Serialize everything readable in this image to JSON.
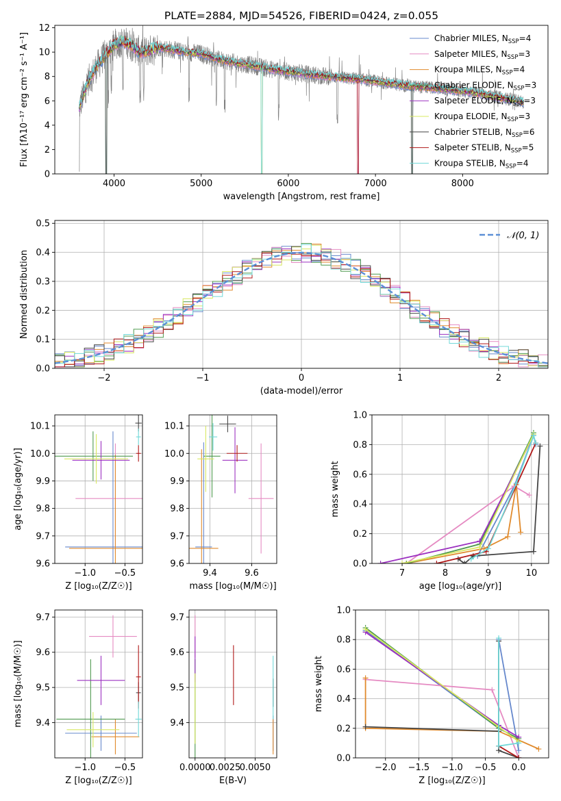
{
  "chart_data": [
    {
      "id": "spectrum",
      "type": "line",
      "title": "PLATE=2884, MJD=54526, FIBERID=0424, z=0.055",
      "xlabel": "wavelength [Angstrom, rest frame]",
      "ylabel": "Flux [fλ10⁻¹⁷ erg cm⁻² s⁻¹ A⁻¹]",
      "xlim": [
        3320,
        8980
      ],
      "ylim": [
        0,
        12.2
      ],
      "xticks": [
        4000,
        5000,
        6000,
        7000,
        8000
      ],
      "yticks": [
        0,
        2,
        4,
        6,
        8,
        10,
        12
      ],
      "grid": false,
      "legend_position": "right",
      "observed_color": "#808080",
      "continuum": {
        "x": [
          3600,
          3700,
          3800,
          3900,
          4000,
          4100,
          4200,
          4300,
          4400,
          4500,
          4600,
          4800,
          5000,
          5200,
          5400,
          5600,
          5800,
          6000,
          6200,
          6400,
          6600,
          6800,
          7000,
          7200,
          7400,
          7600,
          7800,
          8000,
          8200,
          8400,
          8600,
          8700
        ],
        "y": [
          5.4,
          7.6,
          8.8,
          9.8,
          10.6,
          10.9,
          10.6,
          10.0,
          10.1,
          10.4,
          10.3,
          10.0,
          9.9,
          9.4,
          9.1,
          8.9,
          8.6,
          8.4,
          8.2,
          8.05,
          7.9,
          7.8,
          7.6,
          7.4,
          7.2,
          7.1,
          6.95,
          6.8,
          6.6,
          6.3,
          6.05,
          5.9
        ]
      },
      "legend": [
        {
          "label": "Chabrier MILES, N",
          "sub": "SSP",
          "suffix": "=4",
          "color": "#6688cc"
        },
        {
          "label": "Salpeter MILES, N",
          "sub": "SSP",
          "suffix": "=3",
          "color": "#e58ac2"
        },
        {
          "label": "Kroupa MILES, N",
          "sub": "SSP",
          "suffix": "=4",
          "color": "#e08a2c"
        },
        {
          "label": "Chabrier ELODIE, N",
          "sub": "SSP",
          "suffix": "=3",
          "color": "#4f9a4f"
        },
        {
          "label": "Salpeter ELODIE, N",
          "sub": "SSP",
          "suffix": "=3",
          "color": "#9b30c0"
        },
        {
          "label": "Kroupa ELODIE, N",
          "sub": "SSP",
          "suffix": "=3",
          "color": "#d8e860"
        },
        {
          "label": "Chabrier STELIB, N",
          "sub": "SSP",
          "suffix": "=6",
          "color": "#444444"
        },
        {
          "label": "Salpeter STELIB, N",
          "sub": "SSP",
          "suffix": "=5",
          "color": "#b01818"
        },
        {
          "label": "Kroupa STELIB, N",
          "sub": "SSP",
          "suffix": "=4",
          "color": "#70d8d8"
        }
      ]
    },
    {
      "id": "residuals",
      "type": "histogram",
      "xlabel": "(data-model)/error",
      "ylabel": "Normed distribution",
      "xlim": [
        -2.5,
        2.5
      ],
      "ylim": [
        0,
        0.51
      ],
      "xticks": [
        -2,
        -1,
        0,
        1,
        2
      ],
      "yticks": [
        0.0,
        0.1,
        0.2,
        0.3,
        0.4,
        0.5
      ],
      "grid": true,
      "legend_position": "top-right",
      "gaussian_label": "𝒩(0, 1)",
      "gaussian_color": "#5b8fd6",
      "bin_width": 0.1
    },
    {
      "id": "age-vs-Z",
      "type": "errorbar",
      "xlabel": "Z [log₁₀(Z/Z☉)]",
      "ylabel": "age  [log₁₀(age/yr)]",
      "xlim": [
        -1.38,
        -0.28
      ],
      "ylim": [
        9.6,
        10.14
      ],
      "xticks": [
        -1.0,
        -0.5
      ],
      "yticks": [
        9.6,
        9.7,
        9.8,
        9.9,
        10.0,
        10.1
      ],
      "grid": true,
      "points": [
        {
          "x": -0.65,
          "y": 9.66,
          "xerr": 0.6,
          "yerr": 0.42,
          "color": "#6688cc"
        },
        {
          "x": -0.62,
          "y": 9.836,
          "xerr": 0.5,
          "yerr": 0.2,
          "color": "#e58ac2"
        },
        {
          "x": -0.62,
          "y": 9.655,
          "xerr": 0.58,
          "yerr": 0.34,
          "color": "#e08a2c"
        },
        {
          "x": -0.9,
          "y": 9.99,
          "xerr": 0.5,
          "yerr": 0.09,
          "color": "#4f9a4f"
        },
        {
          "x": -0.8,
          "y": 9.975,
          "xerr": 0.36,
          "yerr": 0.07,
          "color": "#9b30c0"
        },
        {
          "x": -0.86,
          "y": 9.98,
          "xerr": 0.4,
          "yerr": 0.09,
          "color": "#d8e860"
        },
        {
          "x": -0.33,
          "y": 10.11,
          "xerr": 0.04,
          "yerr": 0.03,
          "color": "#444444"
        },
        {
          "x": -0.33,
          "y": 10.0,
          "xerr": 0.03,
          "yerr": 0.03,
          "color": "#b01818"
        },
        {
          "x": -0.33,
          "y": 10.06,
          "xerr": 0.03,
          "yerr": 0.03,
          "color": "#70d8d8"
        }
      ]
    },
    {
      "id": "age-vs-mass",
      "type": "errorbar",
      "xlabel": "mass [log₁₀(M/M☉)]",
      "ylabel": "",
      "xlim": [
        9.3,
        9.72
      ],
      "ylim": [
        9.6,
        10.14
      ],
      "xticks": [
        9.4,
        9.6
      ],
      "yticks": [
        9.6,
        9.7,
        9.8,
        9.9,
        10.0,
        10.1
      ],
      "grid": true,
      "points": [
        {
          "x": 9.37,
          "y": 9.66,
          "xerr": 0.04,
          "yerr": 0.38,
          "color": "#6688cc"
        },
        {
          "x": 9.645,
          "y": 9.836,
          "xerr": 0.06,
          "yerr": 0.2,
          "color": "#e58ac2"
        },
        {
          "x": 9.36,
          "y": 9.655,
          "xerr": 0.08,
          "yerr": 0.36,
          "color": "#e08a2c"
        },
        {
          "x": 9.41,
          "y": 9.99,
          "xerr": 0.04,
          "yerr": 0.15,
          "color": "#4f9a4f"
        },
        {
          "x": 9.52,
          "y": 9.975,
          "xerr": 0.06,
          "yerr": 0.12,
          "color": "#9b30c0"
        },
        {
          "x": 9.38,
          "y": 9.98,
          "xerr": 0.04,
          "yerr": 0.12,
          "color": "#d8e860"
        },
        {
          "x": 9.485,
          "y": 10.107,
          "xerr": 0.04,
          "yerr": 0.03,
          "color": "#444444"
        },
        {
          "x": 9.53,
          "y": 10.0,
          "xerr": 0.05,
          "yerr": 0.03,
          "color": "#b01818"
        },
        {
          "x": 9.415,
          "y": 10.06,
          "xerr": 0.02,
          "yerr": 0.05,
          "color": "#70d8d8"
        }
      ]
    },
    {
      "id": "weight-vs-age",
      "type": "line",
      "xlabel": "age  [log₁₀(age/yr)]",
      "ylabel": "mass weight",
      "xlim": [
        6.3,
        10.4
      ],
      "ylim": [
        0,
        1.0
      ],
      "xticks": [
        7,
        8,
        9,
        10
      ],
      "yticks": [
        0.0,
        0.2,
        0.4,
        0.6,
        0.8,
        1.0
      ],
      "grid": true,
      "series": [
        {
          "color": "#6688cc",
          "x": [
            8.75,
            9.6,
            10.05,
            10.1
          ],
          "y": [
            0.05,
            0.52,
            0.86,
            0.8
          ]
        },
        {
          "color": "#e58ac2",
          "x": [
            7.1,
            9.6,
            9.95
          ],
          "y": [
            0.0,
            0.52,
            0.46
          ]
        },
        {
          "color": "#e08a2c",
          "x": [
            7.1,
            8.9,
            9.45,
            9.65,
            9.75
          ],
          "y": [
            0.0,
            0.1,
            0.18,
            0.53,
            0.21
          ]
        },
        {
          "color": "#4f9a4f",
          "x": [
            7.1,
            8.8,
            10.05
          ],
          "y": [
            0.0,
            0.13,
            0.88
          ]
        },
        {
          "color": "#9b30c0",
          "x": [
            6.5,
            8.8,
            10.05
          ],
          "y": [
            0.0,
            0.15,
            0.86
          ]
        },
        {
          "color": "#d8e860",
          "x": [
            7.0,
            8.8,
            10.05
          ],
          "y": [
            0.0,
            0.11,
            0.87
          ]
        },
        {
          "color": "#444444",
          "x": [
            8.3,
            8.45,
            8.65,
            10.05,
            10.2
          ],
          "y": [
            0.03,
            0.0,
            0.05,
            0.08,
            0.79
          ]
        },
        {
          "color": "#b01818",
          "x": [
            7.8,
            8.95,
            10.1
          ],
          "y": [
            0.0,
            0.08,
            0.81
          ]
        },
        {
          "color": "#70d8d8",
          "x": [
            8.6,
            9.0,
            9.65,
            10.05,
            10.1
          ],
          "y": [
            0.03,
            0.1,
            0.54,
            0.86,
            0.81
          ]
        }
      ]
    },
    {
      "id": "mass-vs-Z",
      "type": "errorbar",
      "xlabel": "Z [log₁₀(Z/Z☉)]",
      "ylabel": "mass [log₁₀(M/M☉)]",
      "xlim": [
        -1.38,
        -0.28
      ],
      "ylim": [
        9.3,
        9.72
      ],
      "xticks": [
        -1.0,
        -0.5
      ],
      "yticks": [
        9.4,
        9.5,
        9.6,
        9.7
      ],
      "grid": true,
      "points": [
        {
          "x": -0.8,
          "y": 9.37,
          "xerr": 0.45,
          "yerr": 0.05,
          "color": "#6688cc"
        },
        {
          "x": -0.65,
          "y": 9.645,
          "xerr": 0.3,
          "yerr": 0.06,
          "color": "#e58ac2"
        },
        {
          "x": -0.62,
          "y": 9.36,
          "xerr": 0.3,
          "yerr": 0.05,
          "color": "#e08a2c"
        },
        {
          "x": -0.93,
          "y": 9.41,
          "xerr": 0.43,
          "yerr": 0.17,
          "color": "#4f9a4f"
        },
        {
          "x": -0.8,
          "y": 9.52,
          "xerr": 0.3,
          "yerr": 0.07,
          "color": "#9b30c0"
        },
        {
          "x": -0.9,
          "y": 9.38,
          "xerr": 0.33,
          "yerr": 0.05,
          "color": "#d8e860"
        },
        {
          "x": -0.33,
          "y": 9.485,
          "xerr": 0.03,
          "yerr": 0.03,
          "color": "#444444"
        },
        {
          "x": -0.33,
          "y": 9.53,
          "xerr": 0.03,
          "yerr": 0.09,
          "color": "#b01818"
        },
        {
          "x": -0.33,
          "y": 9.41,
          "xerr": 0.04,
          "yerr": 0.05,
          "color": "#70d8d8"
        }
      ]
    },
    {
      "id": "mass-vs-ebv",
      "type": "errorbar",
      "xlabel": "E(B-V)",
      "ylabel": "",
      "xlim": [
        -0.0005,
        0.0068
      ],
      "ylim": [
        9.3,
        9.72
      ],
      "xticks": [
        0.0,
        0.0025,
        0.005
      ],
      "xtick_labels": [
        "0.0000",
        "0.0025",
        "0.0050"
      ],
      "yticks": [
        9.4,
        9.5,
        9.6,
        9.7
      ],
      "grid": true,
      "points": [
        {
          "x": 0.0065,
          "y": 9.37,
          "xerr": 0.0,
          "yerr": 0.05,
          "color": "#6688cc"
        },
        {
          "x": 0.0,
          "y": 9.645,
          "xerr": 0.0,
          "yerr": 0.06,
          "color": "#e58ac2"
        },
        {
          "x": 0.0065,
          "y": 9.36,
          "xerr": 0.0,
          "yerr": 0.05,
          "color": "#e08a2c"
        },
        {
          "x": 0.0,
          "y": 9.41,
          "xerr": 0.0,
          "yerr": 0.17,
          "color": "#4f9a4f"
        },
        {
          "x": 0.0,
          "y": 9.58,
          "xerr": 0.0,
          "yerr": 0.065,
          "color": "#9b30c0"
        },
        {
          "x": 0.0,
          "y": 9.44,
          "xerr": 0.0,
          "yerr": 0.1,
          "color": "#d8e860"
        },
        {
          "x": 0.0065,
          "y": 9.485,
          "xerr": 0.0,
          "yerr": 0.04,
          "color": "#444444"
        },
        {
          "x": 0.0032,
          "y": 9.535,
          "xerr": 0.0,
          "yerr": 0.085,
          "color": "#b01818"
        },
        {
          "x": 0.0065,
          "y": 9.5,
          "xerr": 0.0,
          "yerr": 0.09,
          "color": "#70d8d8"
        }
      ]
    },
    {
      "id": "weight-vs-Z",
      "type": "line",
      "xlabel": "Z [log₁₀(Z/Z☉)]",
      "ylabel": "mass weight",
      "xlim": [
        -2.45,
        0.45
      ],
      "ylim": [
        0,
        1.0
      ],
      "xticks": [
        -2.0,
        -1.5,
        -1.0,
        -0.5,
        0.0
      ],
      "yticks": [
        0.0,
        0.2,
        0.4,
        0.6,
        0.8,
        1.0
      ],
      "grid": true,
      "series": [
        {
          "color": "#6688cc",
          "x": [
            -2.3,
            -0.3,
            -0.3,
            0.0
          ],
          "y": [
            0.86,
            0.2,
            0.8,
            0.05
          ]
        },
        {
          "color": "#e58ac2",
          "x": [
            -2.3,
            -0.4,
            0.0
          ],
          "y": [
            0.53,
            0.46,
            0.0
          ]
        },
        {
          "color": "#e08a2c",
          "x": [
            -2.3,
            -2.3,
            -0.3,
            0.3
          ],
          "y": [
            0.54,
            0.2,
            0.18,
            0.06
          ]
        },
        {
          "color": "#4f9a4f",
          "x": [
            -2.3,
            -0.3,
            0.0
          ],
          "y": [
            0.88,
            0.2,
            0.13
          ]
        },
        {
          "color": "#9b30c0",
          "x": [
            -2.3,
            -0.3,
            0.0
          ],
          "y": [
            0.85,
            0.22,
            0.14
          ]
        },
        {
          "color": "#d8e860",
          "x": [
            -2.3,
            -0.3,
            0.0
          ],
          "y": [
            0.87,
            0.21,
            0.11
          ]
        },
        {
          "color": "#444444",
          "x": [
            -2.3,
            -0.3,
            -0.3,
            -0.3,
            0.0
          ],
          "y": [
            0.21,
            0.18,
            0.79,
            0.05,
            0.0
          ]
        },
        {
          "color": "#b01818",
          "x": [
            -0.3,
            0.0
          ],
          "y": [
            0.08,
            0.0
          ]
        },
        {
          "color": "#70d8d8",
          "x": [
            -0.3,
            -0.3,
            0.0
          ],
          "y": [
            0.81,
            0.08,
            0.1
          ]
        }
      ]
    }
  ]
}
